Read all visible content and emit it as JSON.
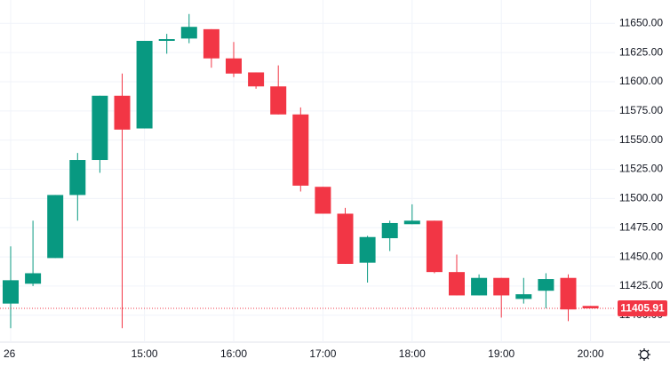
{
  "chart_data": {
    "type": "candlestick",
    "categories": [
      "26",
      null,
      null,
      null,
      null,
      null,
      "15:00",
      null,
      null,
      null,
      "16:00",
      null,
      null,
      null,
      "17:00",
      null,
      null,
      null,
      "18:00",
      null,
      null,
      null,
      "19:00",
      null,
      null,
      null,
      "20:00"
    ],
    "open": [
      11410,
      11427,
      11449,
      11503,
      11533,
      11588,
      11560,
      11635,
      11637,
      11645,
      11620,
      11608,
      11596,
      11572,
      11510,
      11487,
      11445,
      11466,
      11478,
      11481,
      11437,
      11417,
      11432,
      11414,
      11421,
      11432,
      11408
    ],
    "high": [
      11459,
      11481,
      11503,
      11539,
      11588,
      11607,
      11635,
      11641,
      11658,
      11645,
      11634,
      11608,
      11614,
      11578,
      11510,
      11492,
      11468,
      11481,
      11495,
      11481,
      11452,
      11435,
      11432,
      11432,
      11436,
      11435,
      11408
    ],
    "low": [
      11389,
      11425,
      11449,
      11481,
      11522,
      11389,
      11560,
      11624,
      11633,
      11612,
      11604,
      11594,
      11572,
      11506,
      11487,
      11444,
      11428,
      11455,
      11478,
      11436,
      11417,
      11417,
      11398,
      11410,
      11406,
      11395,
      11405.91
    ],
    "close": [
      11430,
      11436,
      11503,
      11533,
      11588,
      11559,
      11635,
      11636.5,
      11647,
      11620,
      11607,
      11596,
      11572,
      11511,
      11487,
      11444,
      11467,
      11479,
      11481,
      11437,
      11417,
      11432,
      11417,
      11418,
      11431,
      11405,
      11405.91
    ],
    "up_color": "#089981",
    "down_color": "#f23645",
    "last_price": {
      "value": 11405.91,
      "label": "11405.91"
    },
    "ylim": [
      11377,
      11670
    ],
    "yticks": [
      {
        "value": 11400,
        "label": "11400.00"
      },
      {
        "value": 11425,
        "label": "11425.00"
      },
      {
        "value": 11450,
        "label": "11450.00"
      },
      {
        "value": 11475,
        "label": "11475.00"
      },
      {
        "value": 11500,
        "label": "11500.00"
      },
      {
        "value": 11525,
        "label": "11525.00"
      },
      {
        "value": 11550,
        "label": "11550.00"
      },
      {
        "value": 11575,
        "label": "11575.00"
      },
      {
        "value": 11600,
        "label": "11600.00"
      },
      {
        "value": 11625,
        "label": "11625.00"
      },
      {
        "value": 11650,
        "label": "11650.00"
      }
    ],
    "grid": true
  }
}
